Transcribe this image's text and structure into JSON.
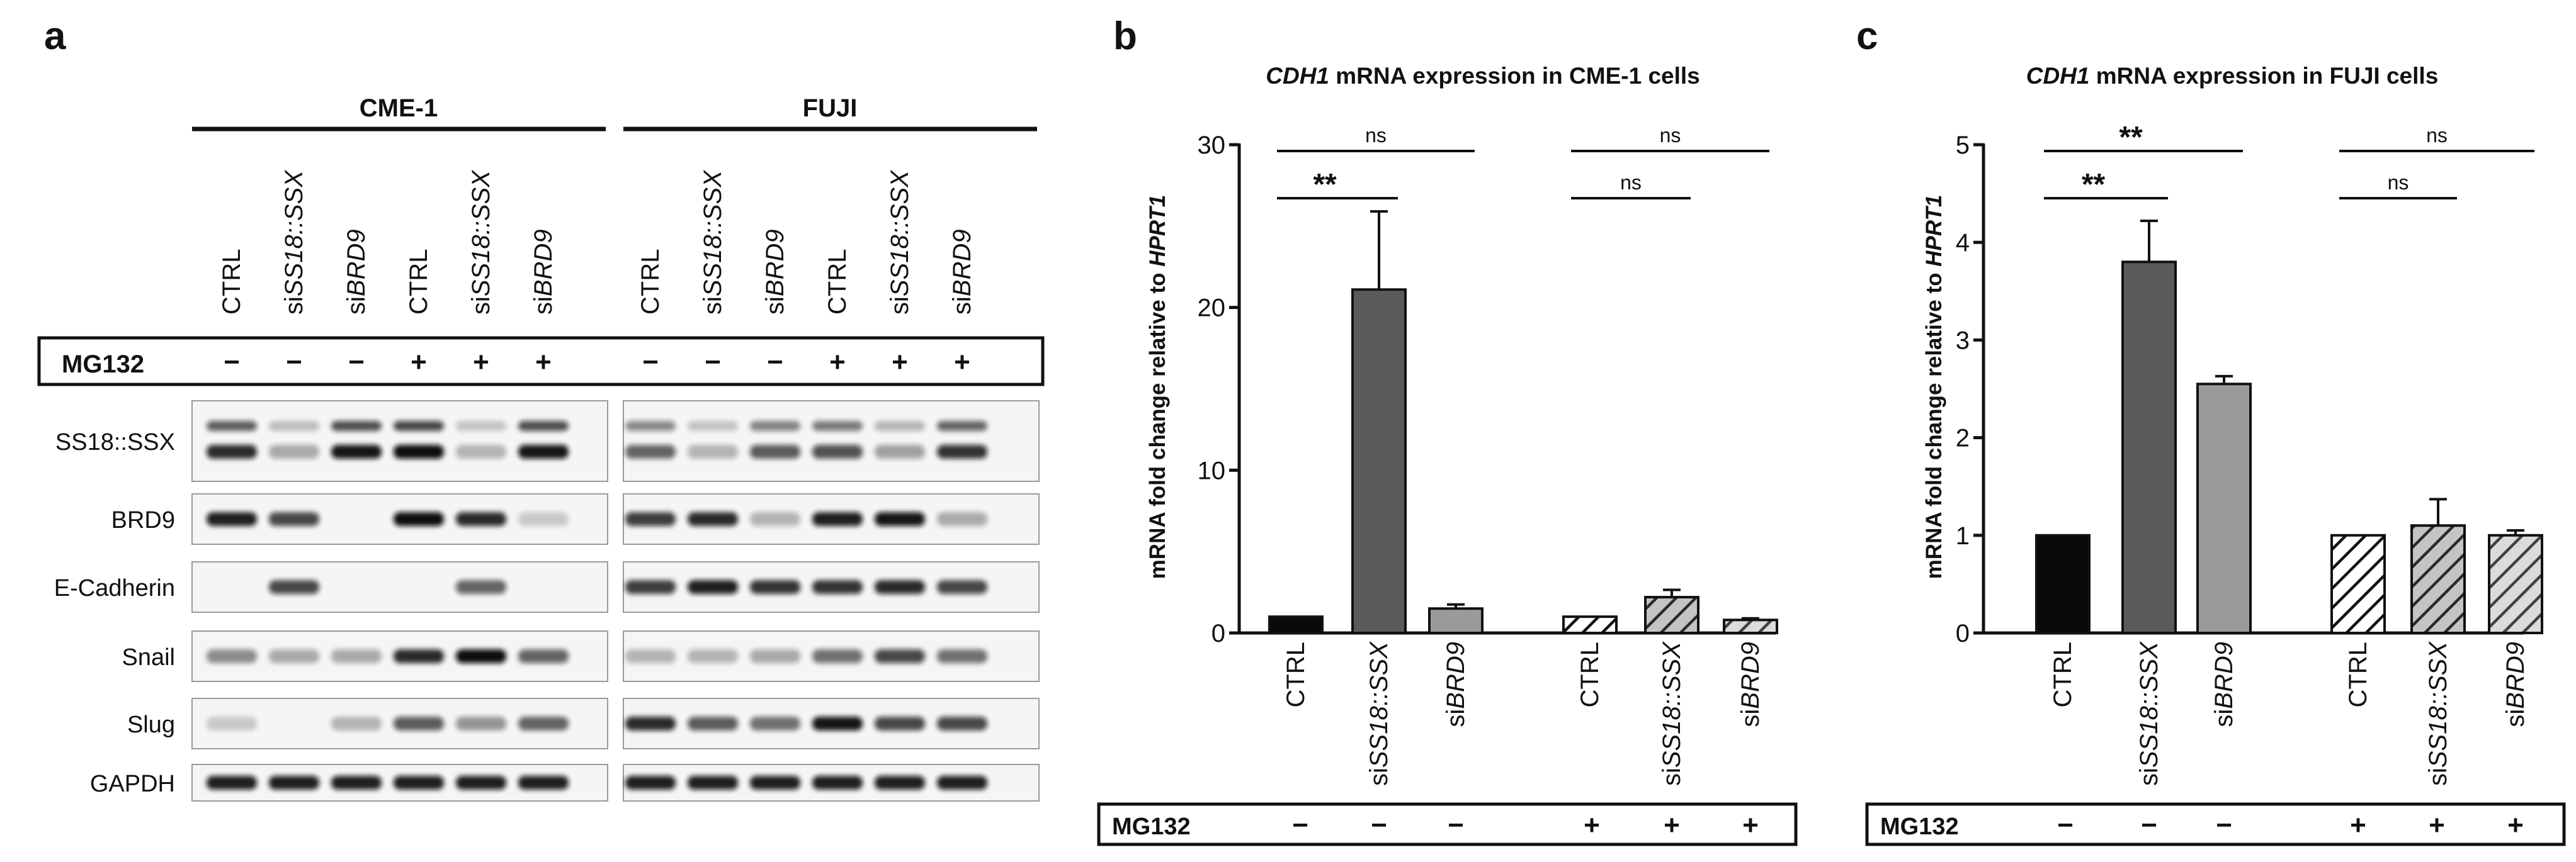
{
  "panel_a": {
    "letter": "a",
    "groups": [
      "CME-1",
      "FUJI"
    ],
    "lanes": [
      {
        "pre": "",
        "it": "",
        "post": "CTRL"
      },
      {
        "pre": "si",
        "it": "SS18::SSX",
        "post": ""
      },
      {
        "pre": "si",
        "it": "BRD9",
        "post": ""
      },
      {
        "pre": "",
        "it": "",
        "post": "CTRL"
      },
      {
        "pre": "si",
        "it": "SS18::SSX",
        "post": ""
      },
      {
        "pre": "si",
        "it": "BRD9",
        "post": ""
      },
      {
        "pre": "",
        "it": "",
        "post": "CTRL"
      },
      {
        "pre": "si",
        "it": "SS18::SSX",
        "post": ""
      },
      {
        "pre": "si",
        "it": "BRD9",
        "post": ""
      },
      {
        "pre": "",
        "it": "",
        "post": "CTRL"
      },
      {
        "pre": "si",
        "it": "SS18::SSX",
        "post": ""
      },
      {
        "pre": "si",
        "it": "BRD9",
        "post": ""
      }
    ],
    "mg132_label": "MG132",
    "mg132_signs": [
      "−",
      "−",
      "−",
      "+",
      "+",
      "+",
      "−",
      "−",
      "−",
      "+",
      "+",
      "+"
    ],
    "proteins": [
      {
        "name": "SS18::SSX",
        "intensity": [
          0.85,
          0.2,
          0.95,
          1.0,
          0.15,
          0.95,
          0.55,
          0.15,
          0.6,
          0.65,
          0.25,
          0.8
        ],
        "double": true
      },
      {
        "name": "BRD9",
        "intensity": [
          0.9,
          0.7,
          0.0,
          1.0,
          0.85,
          0.05,
          0.75,
          0.85,
          0.15,
          0.9,
          0.95,
          0.2
        ],
        "double": false
      },
      {
        "name": "E-Cadherin",
        "intensity": [
          0.0,
          0.7,
          0.0,
          0.0,
          0.55,
          0.0,
          0.75,
          0.9,
          0.8,
          0.8,
          0.85,
          0.7
        ],
        "double": false
      },
      {
        "name": "Snail",
        "intensity": [
          0.35,
          0.2,
          0.2,
          0.85,
          1.0,
          0.55,
          0.15,
          0.15,
          0.2,
          0.5,
          0.7,
          0.5
        ],
        "double": false
      },
      {
        "name": "Slug",
        "intensity": [
          0.05,
          0.0,
          0.15,
          0.6,
          0.3,
          0.55,
          0.85,
          0.6,
          0.5,
          0.95,
          0.7,
          0.7
        ],
        "double": false
      },
      {
        "name": "GAPDH",
        "intensity": [
          0.9,
          0.9,
          0.9,
          0.9,
          0.9,
          0.9,
          0.9,
          0.9,
          0.9,
          0.9,
          0.9,
          0.9
        ],
        "double": false
      }
    ]
  },
  "panel_b": {
    "letter": "b",
    "title_italic": "CDH1",
    "title_rest": " mRNA expression in CME-1 cells",
    "ylabel_plain": "mRNA fold change relative to ",
    "ylabel_italic": "HPRT1",
    "mg132_label": "MG132",
    "mg132_signs": [
      "−",
      "−",
      "−",
      "+",
      "+",
      "+"
    ]
  },
  "panel_c": {
    "letter": "c",
    "title_italic": "CDH1",
    "title_rest": " mRNA expression in FUJI cells",
    "ylabel_plain": "mRNA fold change relative to ",
    "ylabel_italic": "HPRT1",
    "mg132_label": "MG132",
    "mg132_signs": [
      "−",
      "−",
      "−",
      "+",
      "+",
      "+"
    ]
  },
  "chart_data": [
    {
      "type": "bar",
      "title": "CDH1 mRNA expression in CME-1 cells",
      "ylabel": "mRNA fold change relative to HPRT1",
      "ylim": [
        0,
        30
      ],
      "yticks": [
        0,
        10,
        20,
        30
      ],
      "categories": [
        "CTRL",
        "siSS18::SSX",
        "siBRD9",
        "CTRL",
        "siSS18::SSX",
        "siBRD9"
      ],
      "values": [
        1.0,
        21.1,
        1.5,
        1.0,
        2.2,
        0.8
      ],
      "errors": [
        0,
        4.8,
        0.25,
        0,
        0.45,
        0.1
      ],
      "colors": [
        "#0a0a0a",
        "#5a5a5a",
        "#9a9a9a",
        "#0a0a0a",
        "#5a5a5a",
        "#9a9a9a"
      ],
      "hatched": [
        false,
        false,
        false,
        true,
        true,
        true
      ],
      "significance": [
        {
          "from": 0,
          "to": 1,
          "level": 1,
          "text": "**"
        },
        {
          "from": 0,
          "to": 2,
          "level": 2,
          "text": "ns"
        },
        {
          "from": 3,
          "to": 4,
          "level": 1,
          "text": "ns"
        },
        {
          "from": 3,
          "to": 5,
          "level": 2,
          "text": "ns"
        }
      ]
    },
    {
      "type": "bar",
      "title": "CDH1 mRNA expression in FUJI cells",
      "ylabel": "mRNA fold change relative to HPRT1",
      "ylim": [
        0,
        5
      ],
      "yticks": [
        0,
        1,
        2,
        3,
        4,
        5
      ],
      "categories": [
        "CTRL",
        "siSS18::SSX",
        "siBRD9",
        "CTRL",
        "siSS18::SSX",
        "siBRD9"
      ],
      "values": [
        1.0,
        3.8,
        2.55,
        1.0,
        1.1,
        1.0
      ],
      "errors": [
        0,
        0.42,
        0.08,
        0,
        0.27,
        0.05
      ],
      "colors": [
        "#0a0a0a",
        "#5a5a5a",
        "#9a9a9a",
        "#0a0a0a",
        "#5a5a5a",
        "#9a9a9a"
      ],
      "hatched": [
        false,
        false,
        false,
        true,
        true,
        true
      ],
      "significance": [
        {
          "from": 0,
          "to": 1,
          "level": 1,
          "text": "**"
        },
        {
          "from": 0,
          "to": 2,
          "level": 2,
          "text": "**"
        },
        {
          "from": 3,
          "to": 4,
          "level": 1,
          "text": "ns"
        },
        {
          "from": 3,
          "to": 5,
          "level": 2,
          "text": "ns"
        }
      ]
    }
  ]
}
